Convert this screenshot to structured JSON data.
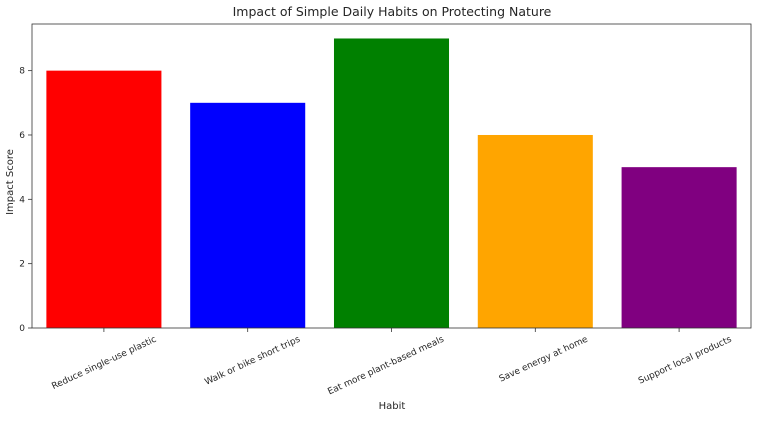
{
  "chart_data": {
    "type": "bar",
    "title": "Impact of Simple Daily Habits on Protecting Nature",
    "xlabel": "Habit",
    "ylabel": "Impact Score",
    "categories": [
      "Reduce single-use plastic",
      "Walk or bike short trips",
      "Eat more plant-based meals",
      "Save energy at home",
      "Support local products"
    ],
    "values": [
      8,
      7,
      9,
      6,
      5
    ],
    "colors": [
      "#ff0000",
      "#0000ff",
      "#008000",
      "#ffa500",
      "#800080"
    ],
    "ylim": [
      0,
      9.45
    ],
    "yticks": [
      0,
      2,
      4,
      6,
      8
    ],
    "grid": false,
    "legend": "none"
  }
}
